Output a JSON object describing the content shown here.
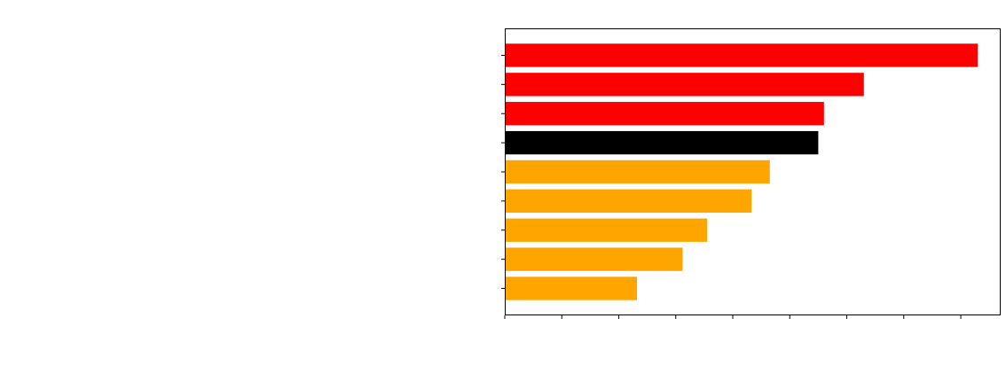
{
  "chart_data": {
    "type": "bar",
    "orientation": "horizontal",
    "title": "",
    "xlabel": "",
    "ylabel": "",
    "tick_labels_visible": false,
    "legend": "none",
    "grid": false,
    "xlim": [
      0,
      8.7
    ],
    "categories": [
      "",
      "",
      "",
      "",
      "",
      "",
      "",
      "",
      ""
    ],
    "values": [
      8.3,
      6.3,
      5.6,
      5.5,
      4.65,
      4.33,
      3.55,
      3.12,
      2.32
    ],
    "bar_colors": [
      "#ff0000",
      "#ff0000",
      "#ff0000",
      "#000000",
      "#ffa500",
      "#ffa500",
      "#ffa500",
      "#ffa500",
      "#ffa500"
    ],
    "x_tick_count": 9
  }
}
